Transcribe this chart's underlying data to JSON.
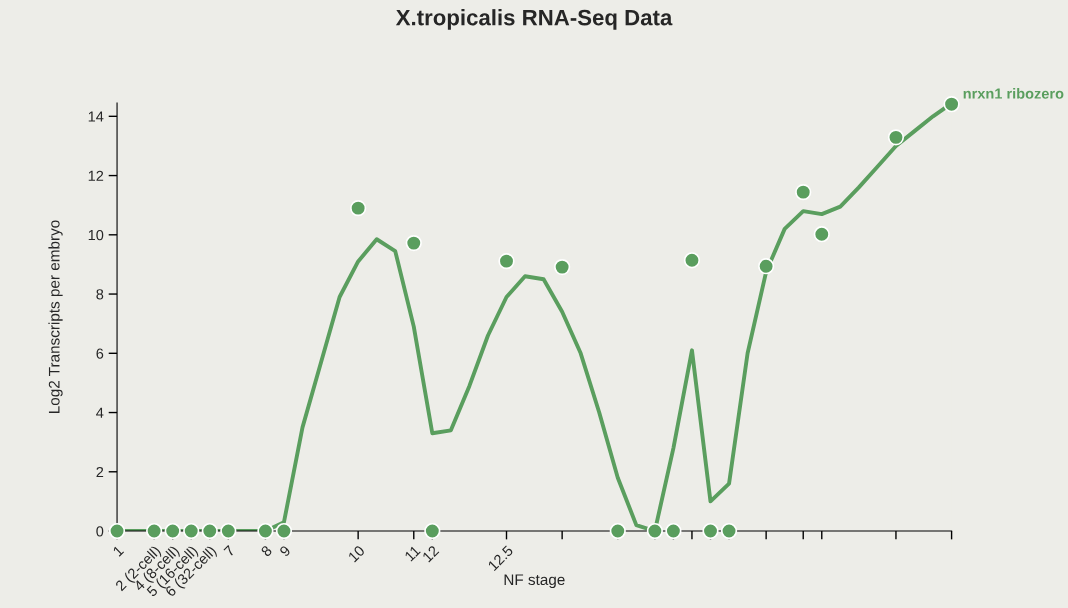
{
  "chart_data": {
    "type": "scatter",
    "title": "X.tropicalis RNA-Seq Data",
    "xlabel": "NF stage",
    "ylabel": "Log2 Transcripts per embryo",
    "categories": [
      "1",
      null,
      "2 (2-cell)",
      "4 (8-cell)",
      "5 (16-cell)",
      "6 (32-cell)",
      "7",
      null,
      "8",
      "9",
      null,
      null,
      null,
      "10",
      null,
      null,
      "11",
      "12",
      null,
      null,
      null,
      "12.5",
      null,
      null,
      null,
      null,
      null,
      null,
      null,
      null,
      null,
      null,
      null,
      null,
      null,
      null,
      null,
      null,
      null,
      null,
      null,
      null,
      null,
      null,
      null,
      null
    ],
    "ylim": [
      0,
      14.45
    ],
    "yticks": [
      0,
      2,
      4,
      6,
      8,
      10,
      12,
      14
    ],
    "grid": false,
    "legend": false,
    "series": [
      {
        "type": "line",
        "color": "#5a9e5e",
        "marker": "none",
        "line_style": "solid",
        "values": [
          0,
          0,
          0,
          0,
          0,
          0,
          0,
          0,
          0,
          0.3,
          3.5,
          5.7,
          7.9,
          9.1,
          9.85,
          9.45,
          6.9,
          3.3,
          3.4,
          4.9,
          6.6,
          7.9,
          8.6,
          8.5,
          7.4,
          6.0,
          4.0,
          1.8,
          0.2,
          0,
          2.8,
          6.1,
          1.0,
          1.6,
          6.0,
          8.75,
          10.2,
          10.8,
          10.7,
          10.95,
          11.6,
          12.3,
          13.0,
          13.5,
          14.0,
          14.44
        ]
      },
      {
        "name": "nrxn1 ribozero",
        "color": "#5a9e5e",
        "marker": "circle",
        "values": [
          0,
          null,
          0,
          0,
          0,
          0,
          0,
          null,
          0,
          0,
          null,
          null,
          null,
          10.9,
          null,
          null,
          9.72,
          0,
          null,
          null,
          null,
          9.11,
          null,
          null,
          8.91,
          null,
          null,
          0,
          null,
          0,
          0,
          9.14,
          0,
          0,
          null,
          8.94,
          null,
          11.44,
          10.02,
          null,
          null,
          null,
          13.29,
          null,
          null,
          14.41
        ]
      }
    ]
  }
}
